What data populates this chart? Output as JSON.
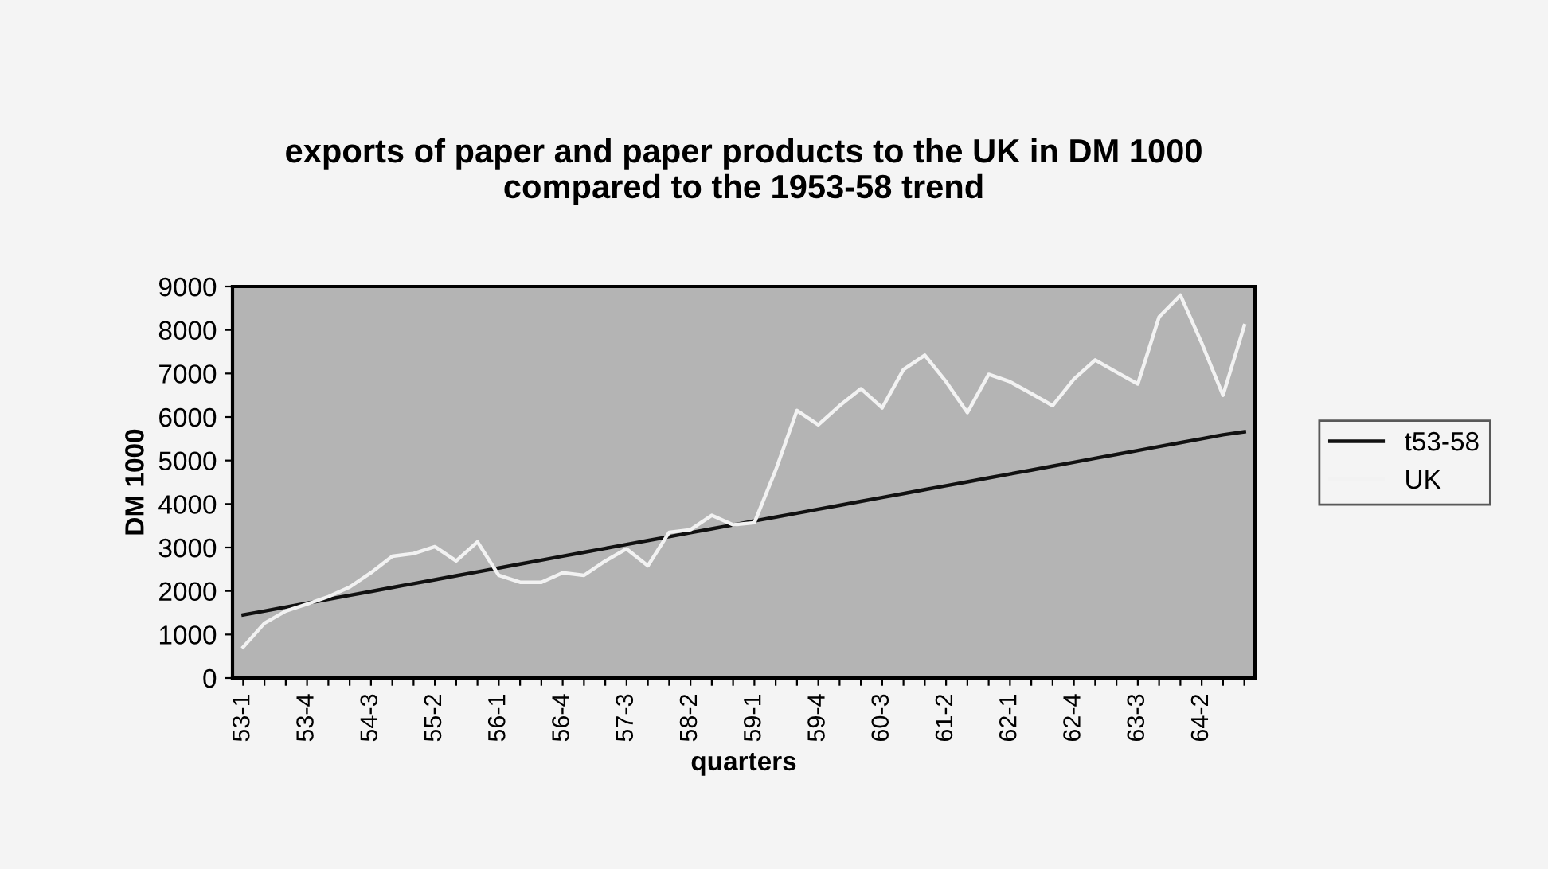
{
  "chart_data": {
    "type": "line",
    "title": "exports of paper and paper products to the UK in DM 1000\ncompared to the 1953-58 trend",
    "xlabel": "quarters",
    "ylabel": "DM 1000",
    "categories": [
      "53-1",
      null,
      null,
      "53-4",
      null,
      null,
      "54-3",
      null,
      null,
      "55-2",
      null,
      null,
      "56-1",
      null,
      null,
      "56-4",
      null,
      null,
      "57-3",
      null,
      null,
      "58-2",
      null,
      null,
      "59-1",
      null,
      null,
      "59-4",
      null,
      null,
      "60-3",
      null,
      null,
      "61-2",
      null,
      null,
      "62-1",
      null,
      null,
      "62-4",
      null,
      null,
      "63-3",
      null,
      null,
      "64-2",
      null,
      null
    ],
    "series": [
      {
        "name": "t53-58",
        "color": "#111111",
        "values": [
          1450,
          1540,
          1630,
          1720,
          1810,
          1900,
          1990,
          2080,
          2170,
          2260,
          2350,
          2440,
          2530,
          2620,
          2710,
          2800,
          2890,
          2980,
          3070,
          3160,
          3250,
          3340,
          3430,
          3520,
          3610,
          3700,
          3790,
          3880,
          3970,
          4060,
          4150,
          4240,
          4330,
          4420,
          4510,
          4600,
          4690,
          4780,
          4870,
          4960,
          5050,
          5140,
          5230,
          5320,
          5410,
          5500,
          5590,
          5660
        ]
      },
      {
        "name": "UK",
        "color": "#f2f2f2",
        "values": [
          710,
          1260,
          1540,
          1700,
          1870,
          2090,
          2420,
          2800,
          2860,
          3020,
          2690,
          3130,
          2360,
          2200,
          2200,
          2420,
          2360,
          2690,
          2970,
          2580,
          3350,
          3410,
          3740,
          3520,
          3570,
          4780,
          6150,
          5820,
          6260,
          6650,
          6210,
          7090,
          7420,
          6810,
          6100,
          6980,
          6810,
          6540,
          6260,
          6870,
          7310,
          7030,
          6760,
          8300,
          8800,
          7700,
          6500,
          8100
        ]
      }
    ],
    "ylim": [
      0,
      9000
    ],
    "yticks": [
      0,
      1000,
      2000,
      3000,
      4000,
      5000,
      6000,
      7000,
      8000,
      9000
    ],
    "grid": false,
    "legend": "right",
    "marker": "none",
    "line_style": "solid"
  }
}
